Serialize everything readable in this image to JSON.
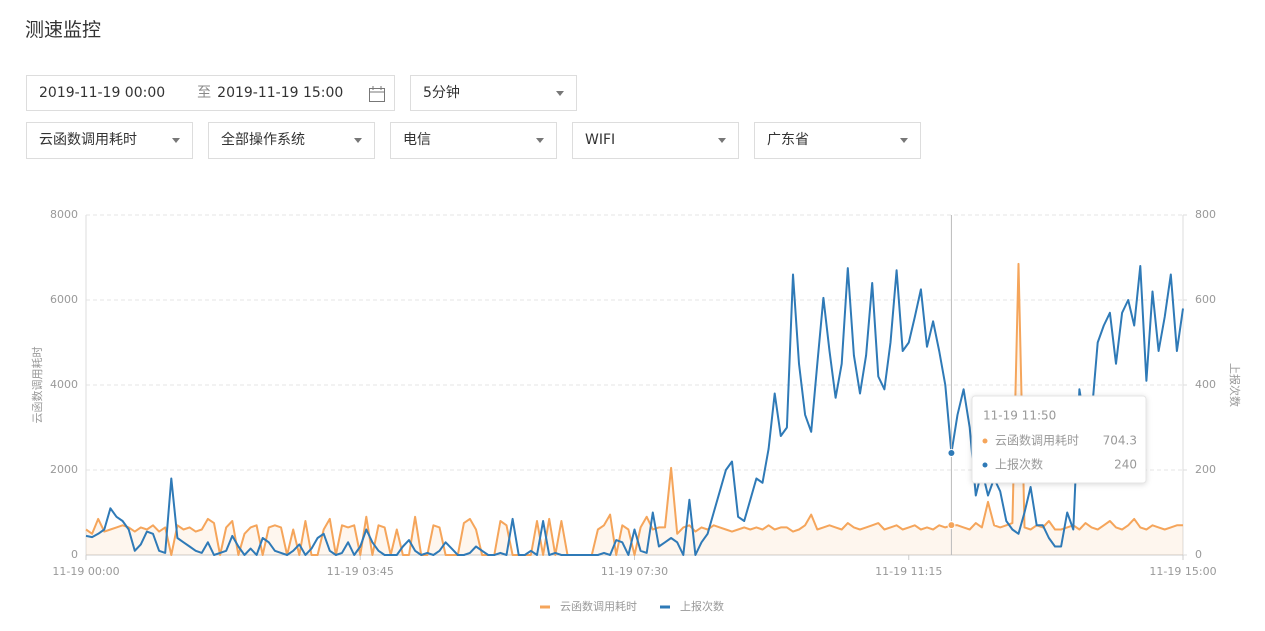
{
  "header": {
    "title": "测速监控"
  },
  "filters": {
    "date_start": "2019-11-19 00:00",
    "date_separator": "至",
    "date_end": "2019-11-19 15:00",
    "interval": "5分钟",
    "selects": [
      "云函数调用耗时",
      "全部操作系统",
      "电信",
      "WIFI",
      "广东省"
    ]
  },
  "chart_data": {
    "type": "line",
    "y_label": "云函数调用耗时",
    "y2_label": "上报次数",
    "categories": [
      "11-19 00:00",
      null,
      null,
      null,
      null,
      null,
      null,
      null,
      null,
      null,
      null,
      null,
      null,
      null,
      null,
      null,
      null,
      null,
      null,
      null,
      null,
      null,
      null,
      null,
      null,
      null,
      null,
      null,
      null,
      null,
      null,
      null,
      null,
      null,
      null,
      null,
      null,
      null,
      null,
      null,
      null,
      null,
      null,
      null,
      null,
      "11-19 03:45",
      null,
      null,
      null,
      null,
      null,
      null,
      null,
      null,
      null,
      null,
      null,
      null,
      null,
      null,
      null,
      null,
      null,
      null,
      null,
      null,
      null,
      null,
      null,
      null,
      null,
      null,
      null,
      null,
      null,
      null,
      null,
      null,
      null,
      null,
      null,
      null,
      null,
      null,
      null,
      null,
      null,
      null,
      null,
      null,
      "11-19 07:30",
      null,
      null,
      null,
      null,
      null,
      null,
      null,
      null,
      null,
      null,
      null,
      null,
      null,
      null,
      null,
      null,
      null,
      null,
      null,
      null,
      null,
      null,
      null,
      null,
      null,
      null,
      null,
      null,
      null,
      null,
      null,
      null,
      null,
      null,
      null,
      null,
      null,
      null,
      null,
      null,
      null,
      null,
      null,
      null,
      "11-19 11:15",
      null,
      null,
      null,
      null,
      null,
      null,
      "11-19 11:50",
      null,
      null,
      null,
      null,
      null,
      null,
      null,
      null,
      null,
      null,
      null,
      null,
      null,
      null,
      null,
      null,
      null,
      null,
      null,
      null,
      null,
      null,
      null,
      null,
      null,
      null,
      null,
      null,
      null,
      null,
      null,
      null,
      null,
      null,
      null,
      null,
      null,
      "11-19 15:00"
    ],
    "xtick_indices": [
      0,
      45,
      90,
      135,
      180
    ],
    "tooltip_index": 142,
    "ylim": [
      0,
      8000
    ],
    "yticks": [
      0,
      2000,
      4000,
      6000,
      8000
    ],
    "y2lim": [
      0,
      800
    ],
    "y2ticks": [
      0,
      200,
      400,
      600,
      800
    ],
    "grid": true,
    "series": [
      {
        "name": "云函数调用耗时",
        "color": "#f5a55b",
        "area": true,
        "values": [
          600,
          500,
          850,
          550,
          600,
          650,
          700,
          650,
          550,
          650,
          600,
          700,
          550,
          650,
          0,
          700,
          600,
          650,
          550,
          600,
          850,
          750,
          0,
          650,
          800,
          0,
          500,
          650,
          700,
          0,
          650,
          700,
          650,
          0,
          600,
          0,
          800,
          0,
          0,
          600,
          850,
          0,
          700,
          650,
          700,
          0,
          900,
          0,
          700,
          650,
          0,
          600,
          0,
          0,
          900,
          0,
          0,
          700,
          650,
          0,
          0,
          0,
          750,
          850,
          600,
          0,
          0,
          0,
          800,
          700,
          0,
          0,
          0,
          0,
          800,
          0,
          850,
          0,
          800,
          0,
          0,
          0,
          0,
          0,
          600,
          700,
          950,
          0,
          700,
          600,
          0,
          650,
          900,
          600,
          650,
          650,
          2050,
          500,
          650,
          700,
          550,
          650,
          600,
          700,
          650,
          600,
          550,
          600,
          650,
          600,
          650,
          600,
          700,
          600,
          650,
          650,
          550,
          600,
          700,
          950,
          600,
          650,
          700,
          650,
          600,
          750,
          650,
          600,
          650,
          700,
          750,
          600,
          650,
          700,
          600,
          650,
          700,
          600,
          650,
          600,
          700,
          650,
          704.3,
          700,
          650,
          600,
          750,
          650,
          1250,
          700,
          650,
          700,
          750,
          6850,
          650,
          600,
          700,
          650,
          800,
          600,
          600,
          650,
          700,
          600,
          750,
          650,
          600,
          700,
          800,
          650,
          600,
          700,
          850,
          650,
          600,
          700,
          650,
          600,
          650,
          700,
          700
        ]
      },
      {
        "name": "上报次数",
        "color": "#2f7ab7",
        "axis": "y2",
        "values": [
          45,
          42,
          50,
          60,
          110,
          90,
          80,
          60,
          10,
          25,
          55,
          50,
          10,
          5,
          180,
          40,
          30,
          20,
          10,
          5,
          30,
          0,
          5,
          10,
          45,
          20,
          0,
          15,
          0,
          40,
          30,
          10,
          5,
          0,
          10,
          25,
          0,
          15,
          40,
          50,
          10,
          0,
          5,
          30,
          0,
          20,
          60,
          30,
          10,
          0,
          0,
          0,
          20,
          35,
          10,
          0,
          5,
          0,
          10,
          30,
          15,
          0,
          0,
          5,
          20,
          10,
          0,
          0,
          5,
          0,
          85,
          0,
          0,
          10,
          0,
          80,
          0,
          5,
          0,
          0,
          0,
          0,
          0,
          0,
          0,
          5,
          0,
          35,
          30,
          0,
          60,
          10,
          5,
          100,
          20,
          30,
          40,
          30,
          0,
          130,
          0,
          30,
          50,
          100,
          150,
          200,
          220,
          90,
          80,
          130,
          180,
          170,
          250,
          380,
          280,
          300,
          660,
          450,
          330,
          290,
          450,
          605,
          480,
          370,
          450,
          675,
          470,
          380,
          470,
          640,
          420,
          390,
          500,
          670,
          480,
          500,
          560,
          625,
          490,
          550,
          480,
          400,
          240,
          330,
          390,
          300,
          140,
          200,
          140,
          180,
          150,
          80,
          60,
          50,
          100,
          160,
          70,
          70,
          40,
          20,
          20,
          100,
          60,
          390,
          300,
          330,
          500,
          540,
          570,
          450,
          570,
          600,
          540,
          680,
          410,
          620,
          480,
          560,
          660,
          480,
          580
        ]
      }
    ]
  }
}
